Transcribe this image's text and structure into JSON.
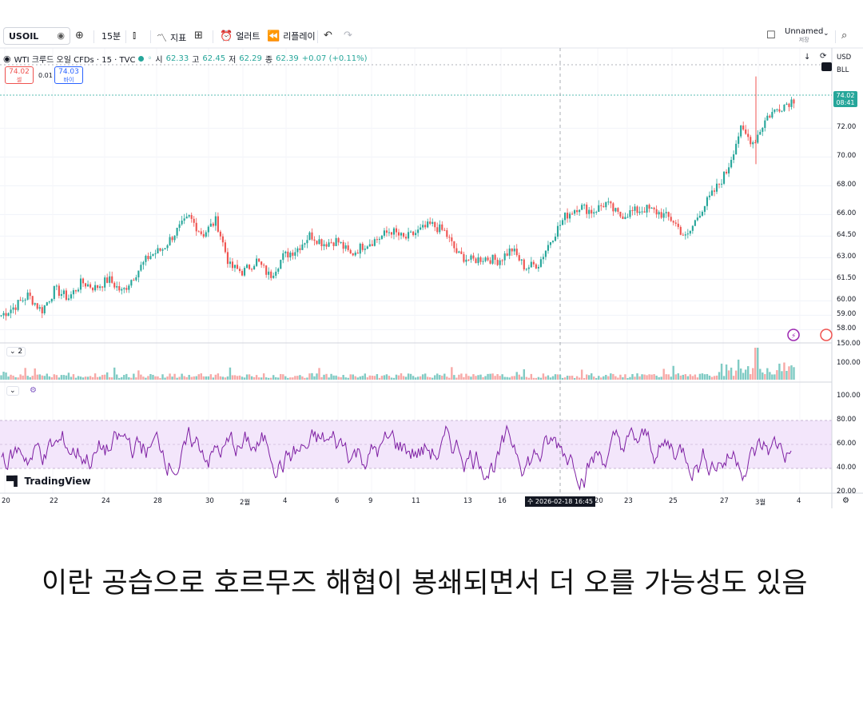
{
  "toolbar": {
    "symbol": "USOIL",
    "interval": "15분",
    "indicators": "지표",
    "alerts": "얼러트",
    "replay": "리플레이",
    "layout_name": "Unnamed",
    "layout_sub": "저장"
  },
  "legend": {
    "title": "WTI 크루드 오일 CFDs · 15 · TVC",
    "open_label": "시",
    "open": "62.33",
    "high_label": "고",
    "high": "62.45",
    "low_label": "저",
    "low": "62.29",
    "close_label": "종",
    "close": "62.39",
    "change": "+0.07 (+0.11%)"
  },
  "trade": {
    "sell_price": "74.02",
    "sell_label": "셀",
    "spread": "0.01",
    "buy_price": "74.03",
    "buy_label": "바이"
  },
  "right_panel": {
    "currency": "USD",
    "unit": "BLL"
  },
  "current_price": {
    "price": "74.02",
    "countdown": "08:41"
  },
  "price_axis": [
    "72.00",
    "70.00",
    "68.00",
    "66.00",
    "64.50",
    "63.00",
    "61.50",
    "60.00",
    "59.00",
    "58.00"
  ],
  "volume_axis": [
    "150.00",
    "100.00"
  ],
  "rsi_axis": [
    "100.00",
    "80.00",
    "60.00",
    "40.00",
    "20.00"
  ],
  "volume_pane_label": "2",
  "time_axis": [
    "20",
    "22",
    "24",
    "28",
    "30",
    "2월",
    "4",
    "6",
    "9",
    "11",
    "13",
    "16",
    "20",
    "23",
    "25",
    "27",
    "3월",
    "4"
  ],
  "crosshair_time": "수 2026-02-18   16:45",
  "branding": "TradingView",
  "colors": {
    "up": "#26a69a",
    "down": "#ef5350",
    "rsi": "#7e1fa3",
    "rsi_band": "#f3e6fb"
  },
  "chart_data": {
    "type": "line",
    "series": [
      {
        "values": [
          59.0,
          59.6,
          60.4,
          59.3,
          60.8,
          60.2,
          61.3,
          60.9,
          61.5,
          60.6,
          61.9,
          63.1,
          63.6,
          64.8,
          65.8,
          64.6,
          65.6,
          62.4,
          62.0,
          62.8,
          61.7,
          63.1,
          63.6,
          64.6,
          64.0,
          64.2,
          63.2,
          63.9,
          64.3,
          64.9,
          64.3,
          64.8,
          65.3,
          64.8,
          63.2,
          62.8,
          63.0,
          62.8,
          63.6,
          62.3,
          62.6,
          64.4,
          65.9,
          66.6,
          66.2,
          66.8,
          65.9,
          66.2,
          66.4,
          66.1,
          65.6,
          64.3,
          66.2,
          67.5,
          69.0,
          71.9,
          71.0,
          72.8,
          73.5,
          74.0
        ]
      }
    ],
    "ylim": [
      57.3,
      75.8
    ],
    "grid": true
  }
}
